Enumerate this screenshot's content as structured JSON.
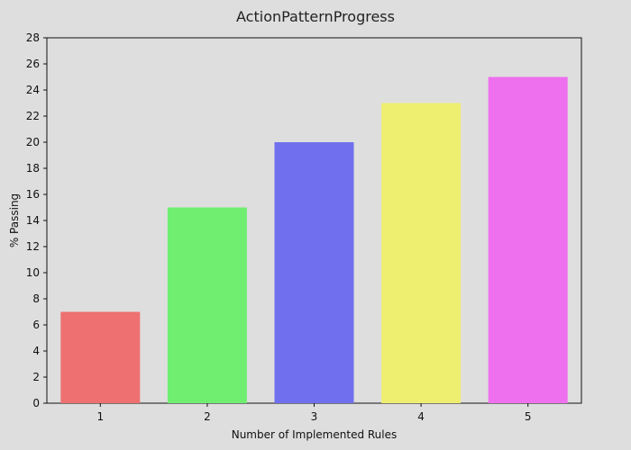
{
  "chart_data": {
    "type": "bar",
    "title": "ActionPatternProgress",
    "xlabel": "Number of Implemented Rules",
    "ylabel": "% Passing",
    "categories": [
      "1",
      "2",
      "3",
      "4",
      "5"
    ],
    "values": [
      7,
      15,
      20,
      23,
      25
    ],
    "colors": [
      "#ee7070",
      "#70ee70",
      "#7070ee",
      "#eeee70",
      "#ee70ee"
    ],
    "ylim": [
      0,
      28
    ],
    "yticks": [
      0,
      2,
      4,
      6,
      8,
      10,
      12,
      14,
      16,
      18,
      20,
      22,
      24,
      26,
      28
    ],
    "grid": false,
    "legend": "none"
  }
}
